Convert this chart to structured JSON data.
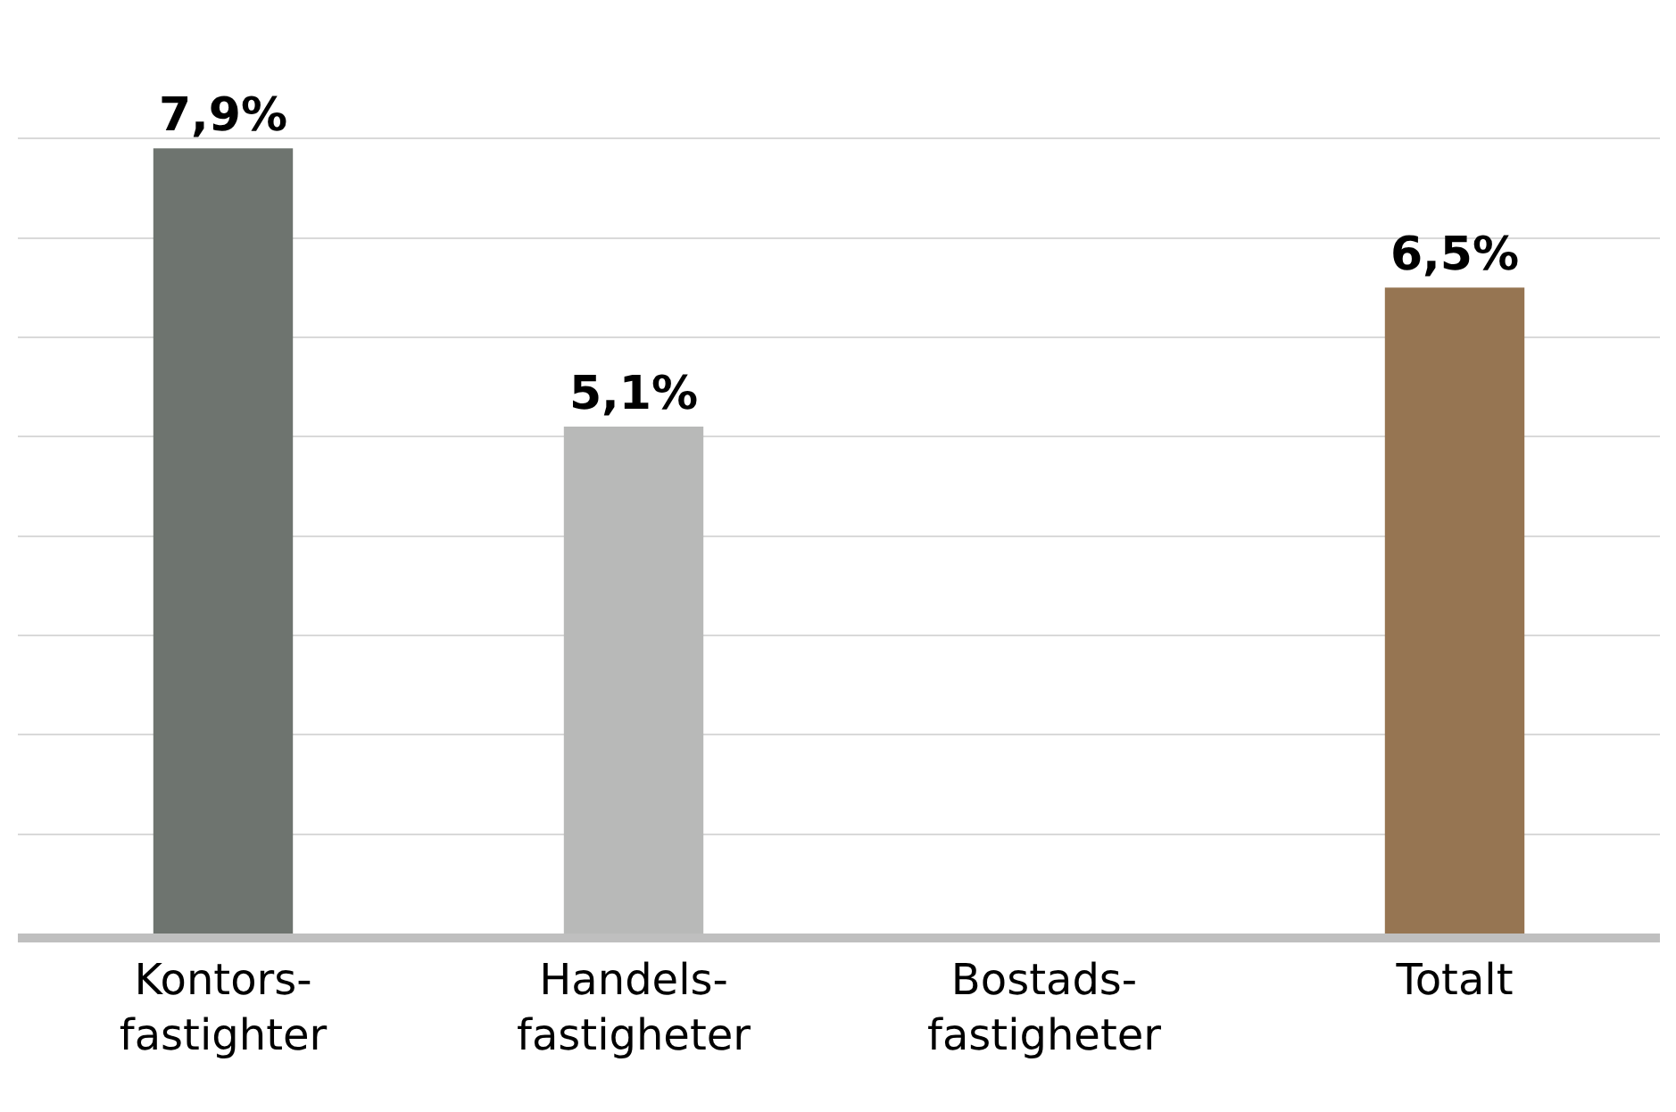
{
  "chart_data": {
    "type": "bar",
    "categories": [
      "Kontors-\nfastighter",
      "Handels-\nfastigheter",
      "Bostads-\nfastigheter",
      "Totalt"
    ],
    "values": [
      7.9,
      5.1,
      null,
      6.5
    ],
    "colors": [
      "#6e746f",
      "#b8b9b8",
      "#b8b9b8",
      "#967552"
    ],
    "value_labels": [
      "7,9%",
      "5,1%",
      null,
      "6,5%"
    ],
    "grid": "y",
    "tick_labels": "x"
  }
}
